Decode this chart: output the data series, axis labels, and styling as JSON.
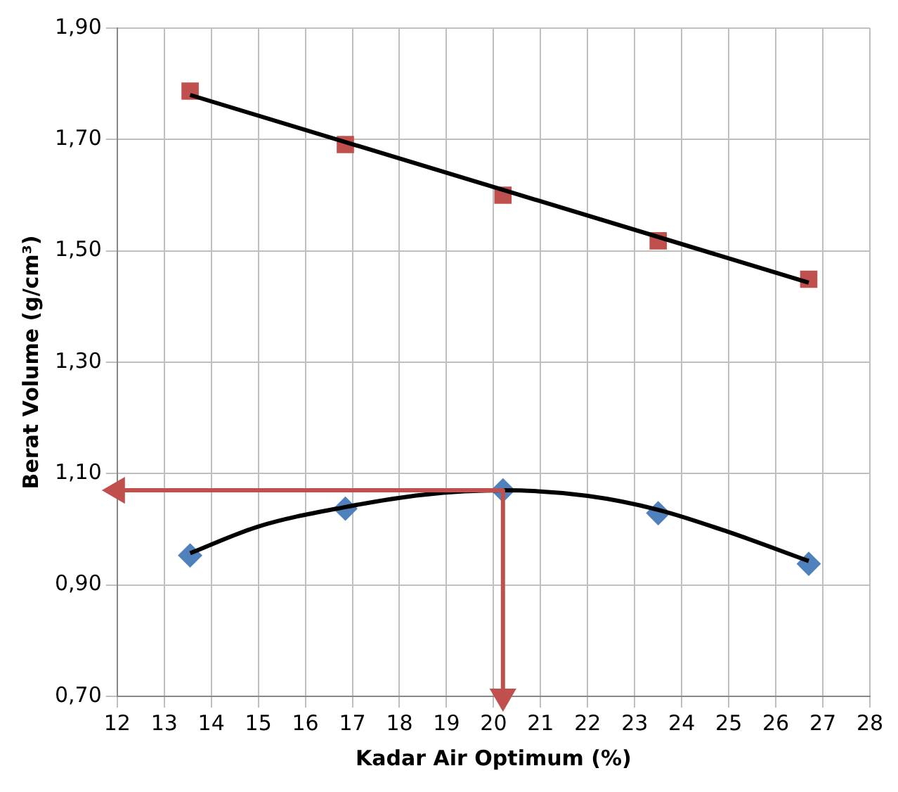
{
  "chart_data": {
    "type": "scatter",
    "xlabel": "Kadar Air Optimum (%)",
    "ylabel": "Berat Volume (g/cm³)",
    "xlim": [
      12,
      28
    ],
    "xticks": [
      12,
      13,
      14,
      15,
      16,
      17,
      18,
      19,
      20,
      21,
      22,
      23,
      24,
      25,
      26,
      27,
      28
    ],
    "ylim": [
      0.7,
      1.9
    ],
    "yticks": [
      {
        "value": 0.7,
        "label": "0,70"
      },
      {
        "value": 0.9,
        "label": "0,90"
      },
      {
        "value": 1.1,
        "label": "1,10"
      },
      {
        "value": 1.3,
        "label": "1,30"
      },
      {
        "value": 1.5,
        "label": "1,50"
      },
      {
        "value": 1.7,
        "label": "1,70"
      },
      {
        "value": 1.9,
        "label": "1,90"
      }
    ],
    "grid": true,
    "series": [
      {
        "type": "line",
        "marker": "none",
        "color": "#000000",
        "x": [
          13.55,
          26.7
        ],
        "values": [
          1.78,
          1.443
        ]
      },
      {
        "type": "line",
        "marker": "none",
        "color": "#000000",
        "x": [
          13.55,
          15,
          16.85,
          18.5,
          20.2,
          22,
          23.5,
          25,
          26.7
        ],
        "values": [
          0.957,
          1.005,
          1.04,
          1.062,
          1.07,
          1.06,
          1.035,
          0.995,
          0.943
        ]
      },
      {
        "marker": "square",
        "color": "#c0504d",
        "x": [
          13.55,
          16.85,
          20.2,
          23.5,
          26.7
        ],
        "values": [
          1.787,
          1.691,
          1.6,
          1.518,
          1.449
        ]
      },
      {
        "marker": "diamond",
        "color": "#4f81bd",
        "x": [
          13.55,
          16.85,
          20.2,
          23.5,
          26.7
        ],
        "values": [
          0.953,
          1.037,
          1.07,
          1.029,
          0.938
        ]
      },
      {
        "type": "line",
        "marker": "triangle",
        "color": "#c0504d",
        "x": [
          12,
          20.2,
          20.2
        ],
        "values": [
          1.07,
          1.07,
          0.7
        ]
      }
    ]
  }
}
